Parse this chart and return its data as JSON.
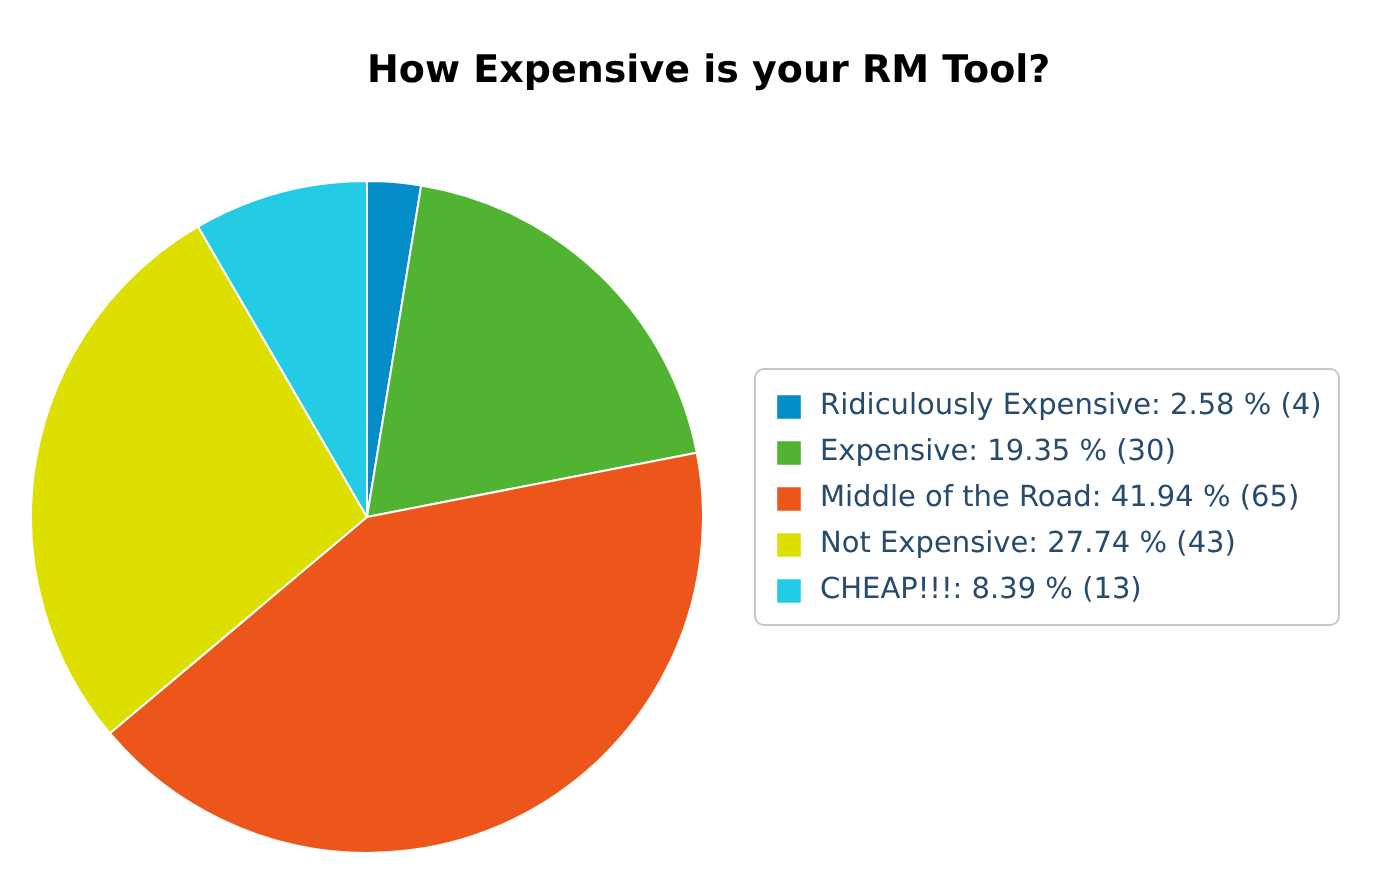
{
  "chart_data": {
    "type": "pie",
    "title": "How Expensive is your RM Tool?",
    "categories": [
      "Ridiculously Expensive",
      "Expensive",
      "Middle of the Road",
      "Not Expensive",
      "CHEAP!!!"
    ],
    "values": [
      4,
      30,
      65,
      43,
      13
    ],
    "value_labels": [
      "2.58 % (4)",
      "19.35 % (30)",
      "41.94 % (65)",
      "27.74 % (43)",
      "8.39 % (13)"
    ],
    "colors": [
      "#058dc7",
      "#50b432",
      "#ed561b",
      "#dddf00",
      "#24cbe5"
    ],
    "legend": "right"
  }
}
